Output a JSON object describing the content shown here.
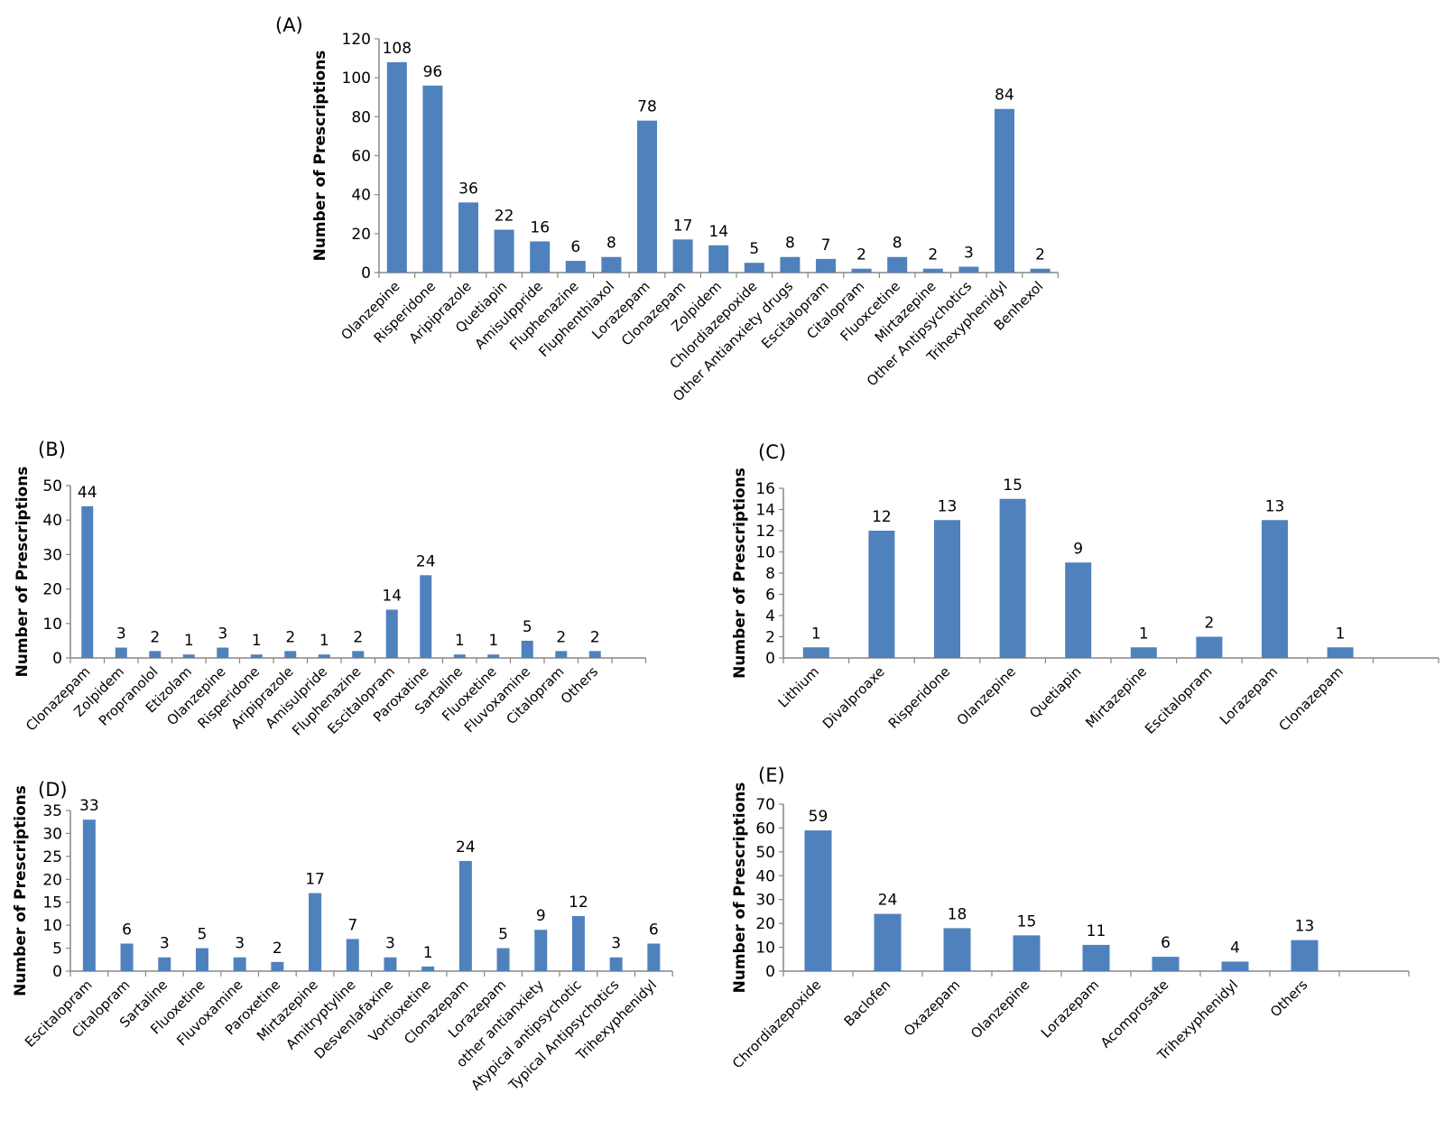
{
  "chart_data": [
    {
      "type": "bar",
      "panel_label": "(A)",
      "ylabel": "Number of Prescriptions",
      "ylim": [
        0,
        120
      ],
      "ytick_step": 20,
      "grid": false,
      "bar_color": "#4f81bd",
      "categories": [
        "Olanzepine",
        "Risperidone",
        "Aripiprazole",
        "Quetiapin",
        "Amisulppride",
        "Fluphenazine",
        "Fluphenthiaxol",
        "Lorazepam",
        "Clonazepam",
        "Zolpidem",
        "Chlordiazepoxide",
        "Other Antianxiety drugs",
        "Escitalopram",
        "Citalopram",
        "Fluoxcetine",
        "Mirtazepine",
        "Other Antipsychotics",
        "Trihexyphenidyl",
        "Benhexol"
      ],
      "values": [
        108,
        96,
        36,
        22,
        16,
        6,
        8,
        78,
        17,
        14,
        5,
        8,
        7,
        2,
        8,
        2,
        3,
        84,
        2
      ]
    },
    {
      "type": "bar",
      "panel_label": "(B)",
      "ylabel": "Number of Prescriptions",
      "ylim": [
        0,
        50
      ],
      "ytick_step": 10,
      "grid": false,
      "bar_color": "#4f81bd",
      "categories": [
        "Clonazepam",
        "Zolpidem",
        "Propranolol",
        "Etizolam",
        "Olanzepine",
        "Risperidone",
        "Aripiprazole",
        "Amisulpride",
        "Fluphenazine",
        "Escitalopram",
        "Paroxatine",
        "Sartaline",
        "Fluoxetine",
        "Fluvoxamine",
        "Citalopram",
        "Others"
      ],
      "values": [
        44,
        3,
        2,
        1,
        3,
        1,
        2,
        1,
        2,
        14,
        24,
        1,
        1,
        5,
        2,
        2
      ]
    },
    {
      "type": "bar",
      "panel_label": "(C)",
      "ylabel": "Number of Prescriptions",
      "ylim": [
        0,
        16
      ],
      "ytick_step": 2,
      "grid": false,
      "bar_color": "#4f81bd",
      "categories": [
        "Lithium",
        "Divalproaxe",
        "Risperidone",
        "Olanzepine",
        "Quetiapin",
        "Mirtazepine",
        "Escitalopram",
        "Lorazepam",
        "Clonazepam"
      ],
      "values": [
        1,
        12,
        13,
        15,
        9,
        1,
        2,
        13,
        1
      ]
    },
    {
      "type": "bar",
      "panel_label": "(D)",
      "ylabel": "Number of Prescriptions",
      "ylim": [
        0,
        35
      ],
      "ytick_step": 5,
      "grid": false,
      "bar_color": "#4f81bd",
      "categories": [
        "Escitalopram",
        "Citalopram",
        "Sartaline",
        "Fluoxetine",
        "Fluvoxamine",
        "Paroxetine",
        "Mirtazepine",
        "Amitryptyline",
        "Desvenlafaxine",
        "Vortioxetine",
        "Clonazepam",
        "Lorazepam",
        "other antianxiety",
        "Atypical antipsychotic",
        "Typical Antipsychotics",
        "Trihexyphenidyl"
      ],
      "values": [
        33,
        6,
        3,
        5,
        3,
        2,
        17,
        7,
        3,
        1,
        24,
        5,
        9,
        12,
        3,
        6
      ]
    },
    {
      "type": "bar",
      "panel_label": "(E)",
      "ylabel": "Number of Prescriptions",
      "ylim": [
        0,
        70
      ],
      "ytick_step": 10,
      "grid": false,
      "bar_color": "#4f81bd",
      "categories": [
        "Chrordiazepoxide",
        "Baclofen",
        "Oxazepam",
        "Olanzepine",
        "Lorazepam",
        "Acomprosate",
        "Trihexyphenidyl",
        "Others"
      ],
      "values": [
        59,
        24,
        18,
        15,
        11,
        6,
        4,
        13
      ]
    }
  ]
}
